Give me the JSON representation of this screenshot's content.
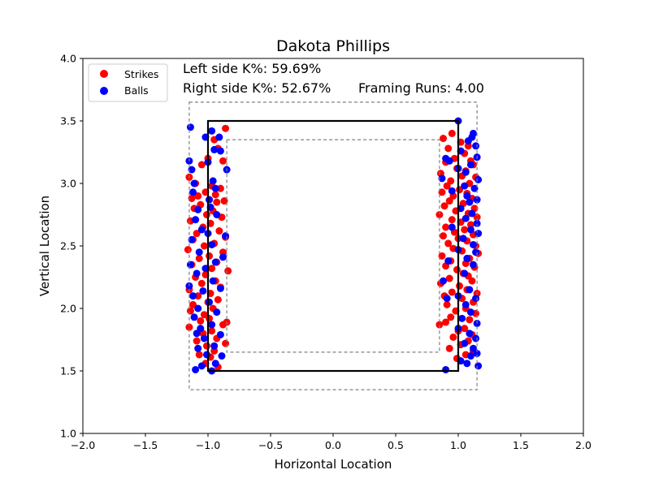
{
  "chart_data": {
    "type": "scatter",
    "title": "Dakota Phillips",
    "xlabel": "Horizontal Location",
    "ylabel": "Vertical Location",
    "xlim": [
      -2.0,
      2.0
    ],
    "ylim": [
      1.0,
      4.0
    ],
    "xticks": [
      "−2.0",
      "−1.5",
      "−1.0",
      "−0.5",
      "0.0",
      "0.5",
      "1.0",
      "1.5",
      "2.0"
    ],
    "yticks": [
      "1.0",
      "1.5",
      "2.0",
      "2.5",
      "3.0",
      "3.5",
      "4.0"
    ],
    "annotations": {
      "left_k": "Left side K%: 59.69%",
      "right_k": "Right side K%: 52.67%",
      "framing": "Framing Runs: 4.00"
    },
    "legend": {
      "position": "top-left",
      "strikes_label": "Strikes",
      "balls_label": "Balls"
    },
    "colors": {
      "strikes": "#ff0000",
      "balls": "#0000ff",
      "zone": "#000000",
      "shadow": "#808080"
    },
    "zones": {
      "strike_zone": {
        "x": [
          -1.0,
          1.0
        ],
        "y": [
          1.5,
          3.5
        ]
      },
      "outer_shadow": {
        "x": [
          -1.15,
          1.15
        ],
        "y": [
          1.35,
          3.65
        ]
      },
      "inner_shadow": {
        "x": [
          -0.85,
          0.85
        ],
        "y": [
          1.65,
          3.35
        ]
      }
    },
    "series": [
      {
        "name": "Strikes",
        "points": [
          [
            -0.86,
            3.44
          ],
          [
            -0.95,
            3.35
          ],
          [
            -0.92,
            3.28
          ],
          [
            -1.0,
            3.2
          ],
          [
            -0.88,
            3.18
          ],
          [
            -1.05,
            3.15
          ],
          [
            -1.15,
            3.05
          ],
          [
            -1.1,
            3.0
          ],
          [
            -0.97,
            2.98
          ],
          [
            -0.9,
            2.96
          ],
          [
            -1.02,
            2.93
          ],
          [
            -0.94,
            2.91
          ],
          [
            -1.08,
            2.9
          ],
          [
            -1.13,
            2.88
          ],
          [
            -0.99,
            2.87
          ],
          [
            -0.87,
            2.86
          ],
          [
            -0.93,
            2.85
          ],
          [
            -1.06,
            2.83
          ],
          [
            -1.11,
            2.8
          ],
          [
            -0.96,
            2.78
          ],
          [
            -1.01,
            2.75
          ],
          [
            -0.89,
            2.73
          ],
          [
            -1.14,
            2.7
          ],
          [
            -0.98,
            2.68
          ],
          [
            -1.04,
            2.65
          ],
          [
            -0.91,
            2.62
          ],
          [
            -1.09,
            2.6
          ],
          [
            -0.86,
            2.57
          ],
          [
            -1.12,
            2.55
          ],
          [
            -0.95,
            2.52
          ],
          [
            -1.03,
            2.5
          ],
          [
            -1.16,
            2.47
          ],
          [
            -0.88,
            2.45
          ],
          [
            -0.99,
            2.42
          ],
          [
            -1.07,
            2.4
          ],
          [
            -0.93,
            2.37
          ],
          [
            -1.13,
            2.35
          ],
          [
            -0.97,
            2.32
          ],
          [
            -0.84,
            2.3
          ],
          [
            -1.02,
            2.27
          ],
          [
            -1.1,
            2.25
          ],
          [
            -0.94,
            2.22
          ],
          [
            -1.05,
            2.2
          ],
          [
            -0.9,
            2.17
          ],
          [
            -1.15,
            2.15
          ],
          [
            -0.98,
            2.12
          ],
          [
            -1.08,
            2.1
          ],
          [
            -0.92,
            2.07
          ],
          [
            -1.0,
            2.05
          ],
          [
            -1.12,
            2.03
          ],
          [
            -0.96,
            2.0
          ],
          [
            -1.14,
            1.98
          ],
          [
            -1.03,
            1.95
          ],
          [
            -0.99,
            1.92
          ],
          [
            -1.06,
            1.9
          ],
          [
            -0.85,
            1.89
          ],
          [
            -0.88,
            1.87
          ],
          [
            -1.15,
            1.85
          ],
          [
            -0.97,
            1.82
          ],
          [
            -1.04,
            1.8
          ],
          [
            -0.93,
            1.76
          ],
          [
            -1.09,
            1.74
          ],
          [
            -0.86,
            1.72
          ],
          [
            -1.01,
            1.7
          ],
          [
            -0.95,
            1.66
          ],
          [
            -1.07,
            1.63
          ],
          [
            -0.98,
            1.61
          ],
          [
            -1.02,
            1.56
          ],
          [
            -0.92,
            1.53
          ],
          [
            0.95,
            3.4
          ],
          [
            0.88,
            3.36
          ],
          [
            1.02,
            3.33
          ],
          [
            1.08,
            3.3
          ],
          [
            0.92,
            3.28
          ],
          [
            1.05,
            3.24
          ],
          [
            0.97,
            3.2
          ],
          [
            1.1,
            3.18
          ],
          [
            0.9,
            3.17
          ],
          [
            1.12,
            3.15
          ],
          [
            0.99,
            3.12
          ],
          [
            1.06,
            3.1
          ],
          [
            0.86,
            3.08
          ],
          [
            1.03,
            3.06
          ],
          [
            1.14,
            3.05
          ],
          [
            0.94,
            3.02
          ],
          [
            1.09,
            3.0
          ],
          [
            0.91,
            2.98
          ],
          [
            1.01,
            2.95
          ],
          [
            0.87,
            2.93
          ],
          [
            1.07,
            2.92
          ],
          [
            0.96,
            2.9
          ],
          [
            1.11,
            2.88
          ],
          [
            0.93,
            2.86
          ],
          [
            1.04,
            2.84
          ],
          [
            0.89,
            2.82
          ],
          [
            1.13,
            2.8
          ],
          [
            0.98,
            2.78
          ],
          [
            1.08,
            2.76
          ],
          [
            0.85,
            2.75
          ],
          [
            1.15,
            2.73
          ],
          [
            0.95,
            2.71
          ],
          [
            1.02,
            2.69
          ],
          [
            1.1,
            2.67
          ],
          [
            0.9,
            2.65
          ],
          [
            1.05,
            2.63
          ],
          [
            0.97,
            2.61
          ],
          [
            1.12,
            2.59
          ],
          [
            0.88,
            2.58
          ],
          [
            1.0,
            2.56
          ],
          [
            1.07,
            2.54
          ],
          [
            0.92,
            2.52
          ],
          [
            1.14,
            2.5
          ],
          [
            0.96,
            2.48
          ],
          [
            1.03,
            2.46
          ],
          [
            1.16,
            2.44
          ],
          [
            0.87,
            2.42
          ],
          [
            1.09,
            2.4
          ],
          [
            0.94,
            2.38
          ],
          [
            1.06,
            2.36
          ],
          [
            0.9,
            2.34
          ],
          [
            1.13,
            2.33
          ],
          [
            0.99,
            2.31
          ],
          [
            1.04,
            2.28
          ],
          [
            1.08,
            2.26
          ],
          [
            0.93,
            2.24
          ],
          [
            1.11,
            2.22
          ],
          [
            0.86,
            2.2
          ],
          [
            1.01,
            2.18
          ],
          [
            1.07,
            2.15
          ],
          [
            0.95,
            2.13
          ],
          [
            1.15,
            2.12
          ],
          [
            0.89,
            2.1
          ],
          [
            1.03,
            2.08
          ],
          [
            1.12,
            2.05
          ],
          [
            0.91,
            2.03
          ],
          [
            1.06,
            2.0
          ],
          [
            0.98,
            1.98
          ],
          [
            1.14,
            1.96
          ],
          [
            0.94,
            1.93
          ],
          [
            1.09,
            1.91
          ],
          [
            0.9,
            1.89
          ],
          [
            0.85,
            1.87
          ],
          [
            1.05,
            1.84
          ],
          [
            1.0,
            1.82
          ],
          [
            1.11,
            1.79
          ],
          [
            0.96,
            1.77
          ],
          [
            1.08,
            1.74
          ],
          [
            1.02,
            1.71
          ],
          [
            0.93,
            1.68
          ],
          [
            1.12,
            1.66
          ],
          [
            1.06,
            1.63
          ],
          [
            0.99,
            1.6
          ]
        ]
      },
      {
        "name": "Balls",
        "points": [
          [
            -1.14,
            3.45
          ],
          [
            -0.97,
            3.42
          ],
          [
            -1.02,
            3.37
          ],
          [
            -0.91,
            3.37
          ],
          [
            -0.95,
            3.27
          ],
          [
            -0.9,
            3.26
          ],
          [
            -1.15,
            3.18
          ],
          [
            -1.0,
            3.17
          ],
          [
            -0.85,
            3.11
          ],
          [
            -1.13,
            3.11
          ],
          [
            -0.96,
            3.02
          ],
          [
            -1.11,
            3.0
          ],
          [
            -0.94,
            2.96
          ],
          [
            -1.12,
            2.93
          ],
          [
            -0.99,
            2.87
          ],
          [
            -0.98,
            2.81
          ],
          [
            -1.08,
            2.79
          ],
          [
            -0.93,
            2.75
          ],
          [
            -1.1,
            2.71
          ],
          [
            -1.05,
            2.63
          ],
          [
            -1.0,
            2.6
          ],
          [
            -0.86,
            2.58
          ],
          [
            -1.13,
            2.55
          ],
          [
            -0.97,
            2.51
          ],
          [
            -1.07,
            2.45
          ],
          [
            -0.88,
            2.41
          ],
          [
            -0.94,
            2.37
          ],
          [
            -1.14,
            2.35
          ],
          [
            -1.02,
            2.32
          ],
          [
            -1.09,
            2.28
          ],
          [
            -0.96,
            2.22
          ],
          [
            -1.15,
            2.18
          ],
          [
            -0.9,
            2.16
          ],
          [
            -1.04,
            2.14
          ],
          [
            -1.12,
            2.1
          ],
          [
            -0.99,
            2.05
          ],
          [
            -1.08,
            2.0
          ],
          [
            -0.93,
            1.97
          ],
          [
            -1.11,
            1.93
          ],
          [
            -0.97,
            1.87
          ],
          [
            -1.06,
            1.84
          ],
          [
            -1.09,
            1.8
          ],
          [
            -0.9,
            1.79
          ],
          [
            -1.03,
            1.76
          ],
          [
            -0.95,
            1.7
          ],
          [
            -1.08,
            1.68
          ],
          [
            -1.01,
            1.63
          ],
          [
            -0.89,
            1.62
          ],
          [
            -0.94,
            1.56
          ],
          [
            -1.05,
            1.54
          ],
          [
            -1.1,
            1.51
          ],
          [
            -0.97,
            1.5
          ],
          [
            1.0,
            3.5
          ],
          [
            1.12,
            3.4
          ],
          [
            1.11,
            3.37
          ],
          [
            1.08,
            3.34
          ],
          [
            1.14,
            3.3
          ],
          [
            1.02,
            3.26
          ],
          [
            1.15,
            3.21
          ],
          [
            0.9,
            3.2
          ],
          [
            0.93,
            3.18
          ],
          [
            1.1,
            3.15
          ],
          [
            1.0,
            3.12
          ],
          [
            1.06,
            3.09
          ],
          [
            1.16,
            3.03
          ],
          [
            0.87,
            3.04
          ],
          [
            1.05,
            2.98
          ],
          [
            1.13,
            2.96
          ],
          [
            0.95,
            2.94
          ],
          [
            1.07,
            2.9
          ],
          [
            1.15,
            2.87
          ],
          [
            1.09,
            2.85
          ],
          [
            1.02,
            2.8
          ],
          [
            1.11,
            2.76
          ],
          [
            1.06,
            2.72
          ],
          [
            1.15,
            2.68
          ],
          [
            0.95,
            2.65
          ],
          [
            1.1,
            2.63
          ],
          [
            1.16,
            2.6
          ],
          [
            1.04,
            2.56
          ],
          [
            1.12,
            2.51
          ],
          [
            1.0,
            2.47
          ],
          [
            1.14,
            2.45
          ],
          [
            1.07,
            2.4
          ],
          [
            0.92,
            2.38
          ],
          [
            1.12,
            2.35
          ],
          [
            1.05,
            2.28
          ],
          [
            0.88,
            2.22
          ],
          [
            1.09,
            2.15
          ],
          [
            1.0,
            2.1
          ],
          [
            0.91,
            2.08
          ],
          [
            1.14,
            2.08
          ],
          [
            1.06,
            2.03
          ],
          [
            1.1,
            1.97
          ],
          [
            1.03,
            1.92
          ],
          [
            1.15,
            1.88
          ],
          [
            1.0,
            1.84
          ],
          [
            1.09,
            1.8
          ],
          [
            1.14,
            1.76
          ],
          [
            1.05,
            1.72
          ],
          [
            1.12,
            1.68
          ],
          [
            1.15,
            1.64
          ],
          [
            1.1,
            1.62
          ],
          [
            1.02,
            1.58
          ],
          [
            1.07,
            1.56
          ],
          [
            1.16,
            1.54
          ],
          [
            0.9,
            1.51
          ]
        ]
      }
    ]
  }
}
